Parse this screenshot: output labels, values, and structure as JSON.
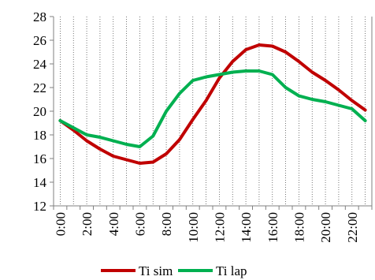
{
  "chart_data": {
    "type": "line",
    "title": "",
    "xlabel": "",
    "ylabel": "",
    "ylim": [
      12,
      28
    ],
    "yticks": [
      12,
      14,
      16,
      18,
      20,
      22,
      24,
      26,
      28
    ],
    "x": [
      0,
      1,
      2,
      3,
      4,
      5,
      6,
      7,
      8,
      9,
      10,
      11,
      12,
      13,
      14,
      15,
      16,
      17,
      18,
      19,
      20,
      21,
      22,
      23
    ],
    "xtick_labels": [
      "0:00",
      "2:00",
      "4:00",
      "6:00",
      "8:00",
      "10:00",
      "12:00",
      "14:00",
      "16:00",
      "18:00",
      "20:00",
      "22:00"
    ],
    "grid": "vertical dotted lines at each hour",
    "legend_position": "bottom",
    "series": [
      {
        "name": "Ti sim",
        "color": "#c00000",
        "values": [
          19.2,
          18.4,
          17.5,
          16.8,
          16.2,
          15.9,
          15.6,
          15.7,
          16.4,
          17.6,
          19.3,
          20.9,
          22.8,
          24.2,
          25.2,
          25.6,
          25.5,
          25.0,
          24.2,
          23.3,
          22.6,
          21.8,
          20.9,
          20.1
        ]
      },
      {
        "name": "Ti lap",
        "color": "#00b050",
        "values": [
          19.2,
          18.6,
          18.0,
          17.8,
          17.5,
          17.2,
          17.0,
          17.9,
          20.0,
          21.5,
          22.6,
          22.9,
          23.1,
          23.3,
          23.4,
          23.4,
          23.1,
          22.0,
          21.3,
          21.0,
          20.8,
          20.5,
          20.2,
          19.2
        ]
      }
    ]
  }
}
